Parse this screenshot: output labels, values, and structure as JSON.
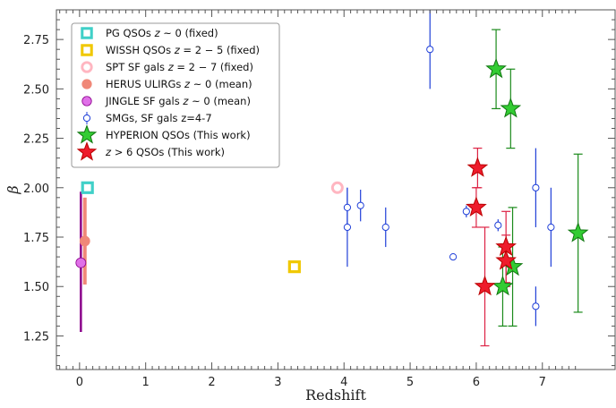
{
  "chart_data": {
    "type": "scatter",
    "xlabel": "Redshift",
    "ylabel": "β",
    "xlim": [
      -0.35,
      8.1
    ],
    "ylim": [
      1.08,
      2.9
    ],
    "xticks": [
      "0",
      "1",
      "2",
      "3",
      "4",
      "5",
      "6",
      "7"
    ],
    "yticks": [
      "1.25",
      "1.50",
      "1.75",
      "2.00",
      "2.25",
      "2.50",
      "2.75"
    ],
    "legend_position": "top-left",
    "grid": false,
    "series": [
      {
        "key": "pg",
        "name": "PG QSOs z ~ 0 (fixed)",
        "label_parts": [
          "PG QSOs ",
          "z",
          " ~ 0 (fixed)"
        ],
        "marker": "open-square",
        "color": "#40d0c8",
        "points": [
          {
            "x": 0.12,
            "y": 2.0
          }
        ]
      },
      {
        "key": "wissh",
        "name": "WISSH QSOs z = 2 − 5 (fixed)",
        "label_parts": [
          "WISSH QSOs ",
          "z",
          " = 2 − 5 (fixed)"
        ],
        "marker": "open-square",
        "color": "#f0c800",
        "points": [
          {
            "x": 3.25,
            "y": 1.6
          }
        ]
      },
      {
        "key": "spt",
        "name": "SPT SF gals z = 2 − 7 (fixed)",
        "label_parts": [
          "SPT SF gals ",
          "z",
          " = 2 − 7 (fixed)"
        ],
        "marker": "open-circle",
        "color": "#ffb6c1",
        "points": [
          {
            "x": 3.9,
            "y": 2.0
          }
        ]
      },
      {
        "key": "herus",
        "name": "HERUS ULIRGs z ~ 0 (mean)",
        "label_parts": [
          "HERUS ULIRGs ",
          "z",
          " ~ 0 (mean)"
        ],
        "marker": "filled-circle",
        "color": "#f08878",
        "points": [
          {
            "x": 0.08,
            "y": 1.73,
            "ylo": 1.51,
            "yhi": 1.95
          }
        ]
      },
      {
        "key": "jingle",
        "name": "JINGLE SF gals z ~ 0 (mean)",
        "label_parts": [
          "JINGLE SF gals ",
          "z",
          " ~ 0 (mean)"
        ],
        "marker": "filled-circle",
        "color": "#e070e8",
        "err_color": "#8b008b",
        "points": [
          {
            "x": 0.02,
            "y": 1.62,
            "ylo": 1.27,
            "yhi": 1.98
          }
        ]
      },
      {
        "key": "smg",
        "name": "SMGs, SF gals z=4-7",
        "label_parts": [
          "SMGs, SF gals z=4-7"
        ],
        "marker": "small-open-circle",
        "color": "#1f3fd8",
        "points": [
          {
            "x": 4.05,
            "y": 1.8,
            "ylo": 1.6,
            "yhi": 2.0
          },
          {
            "x": 4.05,
            "y": 1.9,
            "ylo": 1.8,
            "yhi": 2.0
          },
          {
            "x": 4.25,
            "y": 1.91,
            "ylo": 1.83,
            "yhi": 1.99
          },
          {
            "x": 4.63,
            "y": 1.8,
            "ylo": 1.7,
            "yhi": 1.9
          },
          {
            "x": 5.3,
            "y": 2.7,
            "ylo": 2.5,
            "yhi": 2.9
          },
          {
            "x": 5.65,
            "y": 1.65
          },
          {
            "x": 5.85,
            "y": 1.88,
            "ylo": 1.85,
            "yhi": 1.91
          },
          {
            "x": 6.33,
            "y": 1.81,
            "ylo": 1.78,
            "yhi": 1.84
          },
          {
            "x": 6.9,
            "y": 2.0,
            "ylo": 1.8,
            "yhi": 2.2
          },
          {
            "x": 6.9,
            "y": 1.4,
            "ylo": 1.3,
            "yhi": 1.5
          },
          {
            "x": 7.13,
            "y": 1.8,
            "ylo": 1.6,
            "yhi": 2.0
          }
        ]
      },
      {
        "key": "hyperion",
        "name": "HYPERION QSOs (This work)",
        "label_parts": [
          "HYPERION QSOs (This work)"
        ],
        "marker": "star",
        "color": "#33cc33",
        "err_color": "#1a8a1a",
        "edge": "#117711",
        "points": [
          {
            "x": 6.3,
            "y": 2.6,
            "ylo": 2.4,
            "yhi": 2.8
          },
          {
            "x": 6.52,
            "y": 2.4,
            "ylo": 2.2,
            "yhi": 2.6
          },
          {
            "x": 6.4,
            "y": 1.5,
            "ylo": 1.3,
            "yhi": 1.7
          },
          {
            "x": 6.55,
            "y": 1.6,
            "ylo": 1.3,
            "yhi": 1.9
          },
          {
            "x": 7.54,
            "y": 1.77,
            "ylo": 1.37,
            "yhi": 2.17
          }
        ]
      },
      {
        "key": "z6",
        "name": "z > 6 QSOs (This work)",
        "label_parts": [
          "z",
          " > 6 QSOs (This work)"
        ],
        "marker": "star",
        "color": "#ee1c2c",
        "err_color": "#dd2244",
        "edge": "#bb0000",
        "points": [
          {
            "x": 6.02,
            "y": 2.1,
            "ylo": 2.0,
            "yhi": 2.2
          },
          {
            "x": 6.0,
            "y": 1.9,
            "ylo": 1.8,
            "yhi": 2.0
          },
          {
            "x": 6.45,
            "y": 1.7,
            "ylo": 1.52,
            "yhi": 1.88
          },
          {
            "x": 6.13,
            "y": 1.5,
            "ylo": 1.2,
            "yhi": 1.8
          },
          {
            "x": 6.45,
            "y": 1.63,
            "ylo": 1.5,
            "yhi": 1.76
          }
        ]
      }
    ]
  }
}
